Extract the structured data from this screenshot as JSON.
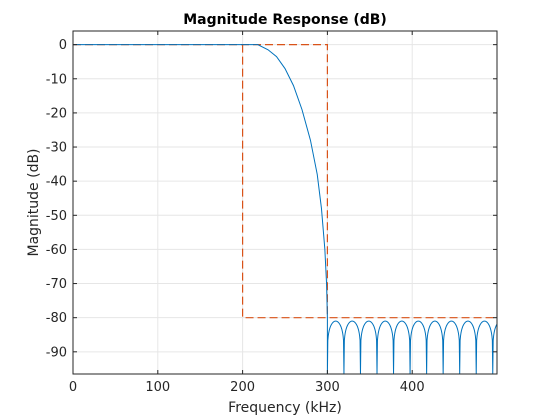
{
  "chart_data": {
    "type": "line",
    "title": "Magnitude Response (dB)",
    "xlabel": "Frequency (kHz)",
    "ylabel": "Magnitude (dB)",
    "xlim": [
      0,
      500
    ],
    "ylim": [
      -96.5,
      4
    ],
    "xticks": [
      0,
      100,
      200,
      300,
      400
    ],
    "yticks": [
      0,
      -10,
      -20,
      -30,
      -40,
      -50,
      -60,
      -70,
      -80,
      -90
    ],
    "xtick_labels": [
      "0",
      "100",
      "200",
      "300",
      "400"
    ],
    "ytick_labels": [
      "0",
      "-10",
      "-20",
      "-30",
      "-40",
      "-50",
      "-60",
      "-70",
      "-80",
      "-90"
    ],
    "grid": true,
    "colors": {
      "response": "#0072bd",
      "mask": "#d95319",
      "grid": "#e6e6e6",
      "axes": "#262626"
    },
    "series": [
      {
        "kind": "response",
        "passband_end_khz": 218,
        "transition_points": [
          [
            0,
            0
          ],
          [
            218,
            0
          ],
          [
            230,
            -1.5
          ],
          [
            240,
            -3.5
          ],
          [
            250,
            -7
          ],
          [
            260,
            -12
          ],
          [
            270,
            -19
          ],
          [
            280,
            -28
          ],
          [
            288,
            -38
          ],
          [
            293,
            -48
          ],
          [
            297,
            -60
          ],
          [
            299,
            -70
          ],
          [
            300,
            -80
          ]
        ],
        "stopband_start_khz": 300,
        "stopband_lobe_period_khz": 19.5,
        "stopband_peak_db": -81,
        "stopband_floor_db": -96.5
      },
      {
        "kind": "mask",
        "style": "dashed",
        "passband_spec": [
          [
            0,
            0
          ],
          [
            300,
            0
          ],
          [
            300,
            -80
          ]
        ],
        "stopband_spec": [
          [
            200,
            0
          ],
          [
            200,
            -80
          ],
          [
            500,
            -80
          ]
        ]
      }
    ]
  }
}
